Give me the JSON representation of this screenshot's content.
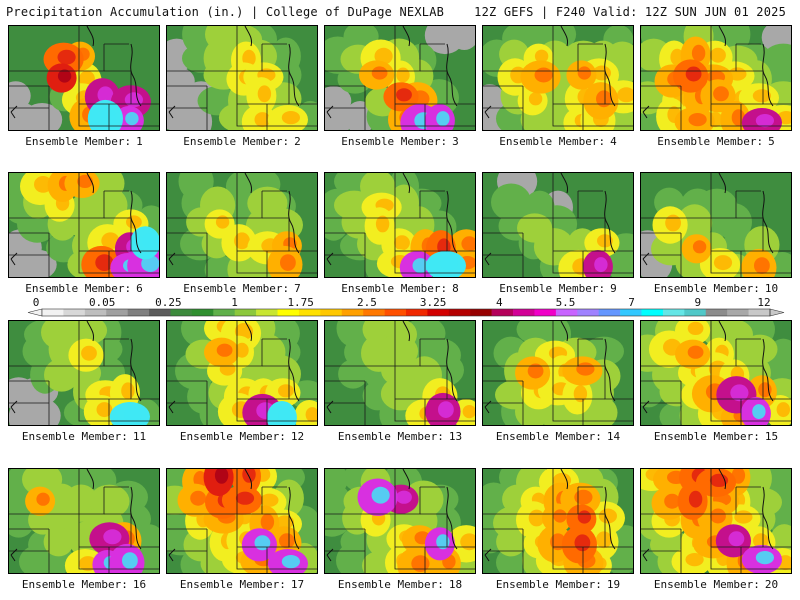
{
  "header": {
    "left": "Precipitation Accumulation (in.) | College of DuPage NEXLAB",
    "right": "12Z GEFS | F240 Valid: 12Z SUN JUN 01 2025"
  },
  "panel_label_prefix": "Ensemble Member:",
  "members": [
    {
      "n": "1",
      "pattern": [
        [
          0,
          0,
          0,
          0,
          0,
          0,
          0
        ],
        [
          0,
          0,
          5,
          4,
          0,
          0,
          0
        ],
        [
          0,
          0,
          6,
          3,
          0,
          0,
          0
        ],
        [
          -1,
          0,
          1,
          3,
          8,
          8,
          0
        ],
        [
          -1,
          -1,
          0,
          4,
          10,
          9,
          0
        ]
      ]
    },
    {
      "n": "2",
      "pattern": [
        [
          0,
          1,
          2,
          2,
          1,
          0,
          0
        ],
        [
          -1,
          1,
          2,
          3,
          2,
          1,
          0
        ],
        [
          -1,
          0,
          2,
          3,
          3,
          1,
          0
        ],
        [
          -1,
          -1,
          1,
          2,
          3,
          2,
          0
        ],
        [
          -1,
          -1,
          0,
          2,
          3,
          3,
          1
        ]
      ]
    },
    {
      "n": "3",
      "pattern": [
        [
          0,
          1,
          0,
          0,
          0,
          -1,
          -1
        ],
        [
          1,
          2,
          3,
          2,
          1,
          0,
          0
        ],
        [
          0,
          1,
          4,
          3,
          2,
          0,
          0
        ],
        [
          -1,
          0,
          2,
          5,
          4,
          1,
          0
        ],
        [
          -1,
          -1,
          1,
          4,
          9,
          9,
          0
        ]
      ]
    },
    {
      "n": "4",
      "pattern": [
        [
          0,
          1,
          1,
          1,
          0,
          0,
          1
        ],
        [
          1,
          2,
          3,
          2,
          2,
          2,
          2
        ],
        [
          0,
          3,
          4,
          2,
          4,
          3,
          2
        ],
        [
          -1,
          2,
          3,
          2,
          3,
          4,
          3
        ],
        [
          -1,
          1,
          2,
          2,
          3,
          3,
          2
        ]
      ]
    },
    {
      "n": "5",
      "pattern": [
        [
          1,
          1,
          2,
          1,
          1,
          0,
          -1
        ],
        [
          2,
          3,
          4,
          3,
          2,
          1,
          1
        ],
        [
          1,
          4,
          5,
          4,
          3,
          2,
          1
        ],
        [
          2,
          3,
          4,
          4,
          3,
          3,
          2
        ],
        [
          1,
          3,
          4,
          3,
          4,
          8,
          3
        ]
      ]
    },
    {
      "n": "6",
      "pattern": [
        [
          1,
          3,
          4,
          4,
          2,
          0,
          0
        ],
        [
          1,
          2,
          3,
          2,
          2,
          1,
          0
        ],
        [
          0,
          1,
          2,
          2,
          2,
          3,
          1
        ],
        [
          -1,
          0,
          1,
          2,
          3,
          8,
          10
        ],
        [
          -1,
          -1,
          0,
          2,
          5,
          9,
          9
        ]
      ]
    },
    {
      "n": "7",
      "pattern": [
        [
          0,
          1,
          0,
          1,
          1,
          0,
          0
        ],
        [
          0,
          1,
          2,
          1,
          2,
          1,
          0
        ],
        [
          0,
          2,
          3,
          1,
          2,
          2,
          0
        ],
        [
          0,
          1,
          2,
          3,
          3,
          4,
          0
        ],
        [
          0,
          0,
          1,
          2,
          2,
          4,
          0
        ]
      ]
    },
    {
      "n": "8",
      "pattern": [
        [
          0,
          1,
          2,
          1,
          0,
          0,
          0
        ],
        [
          1,
          2,
          3,
          2,
          1,
          0,
          0
        ],
        [
          1,
          2,
          3,
          2,
          2,
          1,
          0
        ],
        [
          0,
          1,
          2,
          3,
          4,
          5,
          4
        ],
        [
          0,
          0,
          1,
          3,
          9,
          10,
          4
        ]
      ]
    },
    {
      "n": "9",
      "pattern": [
        [
          0,
          -1,
          0,
          0,
          0,
          0,
          0
        ],
        [
          0,
          1,
          1,
          -1,
          0,
          0,
          0
        ],
        [
          0,
          1,
          2,
          1,
          0,
          0,
          0
        ],
        [
          0,
          0,
          1,
          2,
          2,
          3,
          1
        ],
        [
          0,
          0,
          0,
          1,
          3,
          8,
          1
        ]
      ]
    },
    {
      "n": "10",
      "pattern": [
        [
          0,
          0,
          0,
          0,
          0,
          0,
          0
        ],
        [
          0,
          1,
          1,
          1,
          0,
          0,
          0
        ],
        [
          0,
          3,
          2,
          1,
          1,
          0,
          0
        ],
        [
          -1,
          2,
          4,
          2,
          1,
          2,
          0
        ],
        [
          -1,
          0,
          2,
          3,
          2,
          4,
          1
        ]
      ]
    },
    {
      "n": "11",
      "pattern": [
        [
          0,
          1,
          2,
          2,
          1,
          0,
          0
        ],
        [
          0,
          1,
          2,
          3,
          1,
          0,
          0
        ],
        [
          0,
          1,
          2,
          2,
          1,
          0,
          0
        ],
        [
          -1,
          -1,
          0,
          2,
          3,
          3,
          0
        ],
        [
          -1,
          -1,
          0,
          1,
          3,
          10,
          1
        ]
      ]
    },
    {
      "n": "12",
      "pattern": [
        [
          0,
          1,
          3,
          3,
          2,
          1,
          0
        ],
        [
          0,
          2,
          4,
          3,
          2,
          1,
          0
        ],
        [
          0,
          1,
          3,
          2,
          2,
          2,
          0
        ],
        [
          0,
          1,
          2,
          3,
          3,
          3,
          1
        ],
        [
          0,
          0,
          1,
          3,
          8,
          10,
          3
        ]
      ]
    },
    {
      "n": "13",
      "pattern": [
        [
          0,
          1,
          2,
          2,
          1,
          0,
          0
        ],
        [
          0,
          1,
          2,
          2,
          1,
          1,
          0
        ],
        [
          0,
          1,
          1,
          2,
          2,
          1,
          0
        ],
        [
          0,
          0,
          1,
          2,
          2,
          3,
          0
        ],
        [
          0,
          0,
          0,
          1,
          3,
          8,
          3
        ]
      ]
    },
    {
      "n": "14",
      "pattern": [
        [
          0,
          0,
          1,
          1,
          0,
          0,
          0
        ],
        [
          0,
          1,
          2,
          3,
          2,
          1,
          0
        ],
        [
          0,
          2,
          4,
          3,
          4,
          2,
          0
        ],
        [
          0,
          2,
          3,
          3,
          3,
          2,
          0
        ],
        [
          0,
          1,
          2,
          2,
          2,
          2,
          0
        ]
      ]
    },
    {
      "n": "15",
      "pattern": [
        [
          1,
          2,
          3,
          2,
          2,
          1,
          0
        ],
        [
          2,
          3,
          4,
          3,
          2,
          2,
          1
        ],
        [
          1,
          2,
          3,
          3,
          3,
          2,
          1
        ],
        [
          1,
          2,
          3,
          4,
          8,
          4,
          2
        ],
        [
          0,
          1,
          2,
          3,
          4,
          9,
          3
        ]
      ]
    },
    {
      "n": "16",
      "pattern": [
        [
          1,
          2,
          1,
          1,
          1,
          0,
          0
        ],
        [
          1,
          4,
          2,
          2,
          2,
          1,
          0
        ],
        [
          1,
          2,
          2,
          1,
          2,
          1,
          0
        ],
        [
          0,
          1,
          2,
          2,
          8,
          4,
          1
        ],
        [
          0,
          1,
          1,
          3,
          9,
          9,
          1
        ]
      ]
    },
    {
      "n": "17",
      "pattern": [
        [
          1,
          4,
          6,
          5,
          3,
          1,
          0
        ],
        [
          2,
          4,
          5,
          5,
          3,
          2,
          0
        ],
        [
          1,
          3,
          4,
          3,
          4,
          3,
          1
        ],
        [
          1,
          2,
          3,
          3,
          9,
          4,
          1
        ],
        [
          0,
          1,
          2,
          3,
          4,
          9,
          2
        ]
      ]
    },
    {
      "n": "18",
      "pattern": [
        [
          1,
          1,
          2,
          1,
          0,
          0,
          0
        ],
        [
          1,
          2,
          9,
          8,
          2,
          1,
          0
        ],
        [
          1,
          2,
          3,
          2,
          2,
          1,
          0
        ],
        [
          0,
          1,
          2,
          3,
          4,
          9,
          3
        ],
        [
          0,
          1,
          2,
          3,
          4,
          4,
          2
        ]
      ]
    },
    {
      "n": "19",
      "pattern": [
        [
          0,
          1,
          2,
          3,
          2,
          1,
          0
        ],
        [
          1,
          2,
          3,
          4,
          4,
          2,
          0
        ],
        [
          1,
          2,
          3,
          4,
          5,
          3,
          0
        ],
        [
          1,
          2,
          3,
          4,
          5,
          3,
          1
        ],
        [
          0,
          1,
          2,
          3,
          4,
          3,
          1
        ]
      ]
    },
    {
      "n": "20",
      "pattern": [
        [
          3,
          4,
          5,
          5,
          4,
          2,
          1
        ],
        [
          2,
          4,
          5,
          4,
          3,
          2,
          1
        ],
        [
          2,
          3,
          4,
          4,
          3,
          2,
          1
        ],
        [
          1,
          2,
          3,
          4,
          8,
          3,
          2
        ],
        [
          1,
          2,
          3,
          3,
          4,
          9,
          3
        ]
      ]
    }
  ],
  "legend": {
    "tick_labels": [
      "0",
      "0.05",
      "0.25",
      "1",
      "1.75",
      "2.5",
      "3.25",
      "4",
      "5.5",
      "7",
      "9",
      "12"
    ],
    "colors": [
      "#f2f2f2",
      "#d8d8d8",
      "#bebebe",
      "#a0a0a0",
      "#808080",
      "#5c5c5c",
      "#3c8a3c",
      "#2f8f2f",
      "#5fb04a",
      "#8cc83c",
      "#c8e632",
      "#ffff00",
      "#ffe100",
      "#ffc800",
      "#ffa000",
      "#ff7800",
      "#ff5000",
      "#f02800",
      "#d20000",
      "#b40000",
      "#960000",
      "#b4005a",
      "#d20096",
      "#f000c8",
      "#c864ff",
      "#a082ff",
      "#6496ff",
      "#32c8ff",
      "#00ffff",
      "#64e6e6",
      "#50c8c8",
      "#8c8c8c",
      "#a8a8a8",
      "#c8c8c8"
    ]
  },
  "level_colors": {
    "-1": "#a8a8a8",
    "0": "#3f8d3f",
    "1": "#62b04a",
    "2": "#9ed03a",
    "3": "#f2ee20",
    "4": "#ffb000",
    "5": "#ff6a00",
    "6": "#e01e10",
    "7": "#a80018",
    "8": "#c4108c",
    "9": "#d830e0",
    "10": "#40e8f4"
  }
}
